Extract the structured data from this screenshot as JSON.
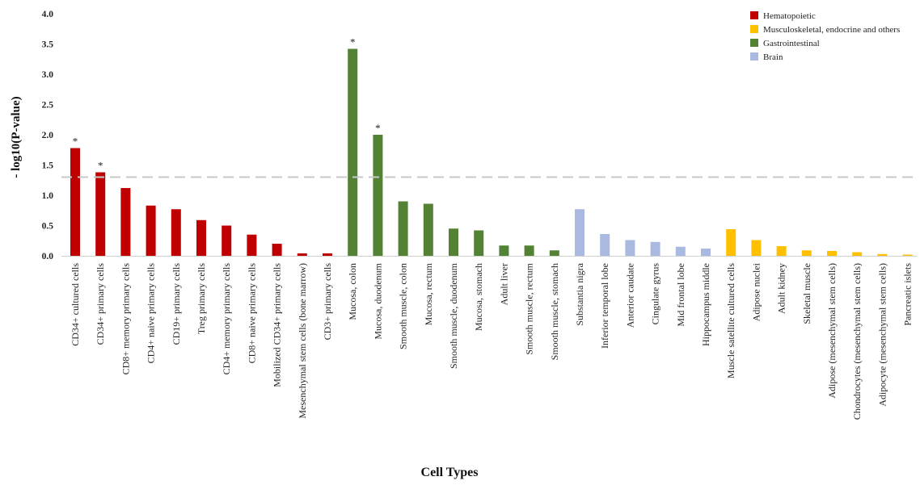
{
  "chart_data": {
    "type": "bar",
    "xlabel": "Cell Types",
    "ylabel": "- log10(P-value)",
    "ylim": [
      0,
      4.0
    ],
    "yticks": [
      "0.0",
      "0.5",
      "1.0",
      "1.5",
      "2.0",
      "2.5",
      "3.0",
      "3.5",
      "4.0"
    ],
    "threshold": 1.3,
    "legend_position": "top-right",
    "groups": [
      {
        "name": "Hematopoietic",
        "color": "#c00000"
      },
      {
        "name": "Musculoskeletal, endocrine and others",
        "color": "#ffc000"
      },
      {
        "name": "Gastrointestinal",
        "color": "#548235"
      },
      {
        "name": "Brain",
        "color": "#a9b9e0"
      }
    ],
    "categories": [
      "CD34+ cultured cells",
      "CD34+ primary cells",
      "CD8+ memory primary cells",
      "CD4+ naive primary cells",
      "CD19+ primary cells",
      "Treg primary cells",
      "CD4+ memory primary cells",
      "CD8+ naive primary cells",
      "Mobilized CD34+ primary cells",
      "Mesenchymal stem cells (bone marrow)",
      "CD3+ primary cells",
      "Mucosa, colon",
      "Mucosa, duodenum",
      "Smooth muscle, colon",
      "Mucosa, rectum",
      "Smooth muscle, duodenum",
      "Mucosa, stomach",
      "Adult liver",
      "Smooth muscle, rectum",
      "Smooth muscle, stomach",
      "Substantia nigra",
      "Inferior temporal lobe",
      "Anterior caudate",
      "Cingulate gyrus",
      "Mid frontal lobe",
      "Hippocampus middle",
      "Muscle satellite cultured cells",
      "Adipose nuclei",
      "Adult kidney",
      "Skeletal muscle",
      "Adipose (mesenchymal stem cells)",
      "Chondrocytes (mesenchymal stem cells)",
      "Adipocyte (mesenchymal stem cells)",
      "Pancreatic islets"
    ],
    "values": [
      1.78,
      1.38,
      1.12,
      0.83,
      0.77,
      0.59,
      0.5,
      0.35,
      0.2,
      0.04,
      0.04,
      3.42,
      2.0,
      0.9,
      0.86,
      0.45,
      0.42,
      0.17,
      0.17,
      0.09,
      0.77,
      0.36,
      0.26,
      0.23,
      0.15,
      0.12,
      0.44,
      0.26,
      0.16,
      0.09,
      0.08,
      0.06,
      0.03,
      0.02
    ],
    "group_index": [
      0,
      0,
      0,
      0,
      0,
      0,
      0,
      0,
      0,
      0,
      0,
      2,
      2,
      2,
      2,
      2,
      2,
      2,
      2,
      2,
      3,
      3,
      3,
      3,
      3,
      3,
      1,
      1,
      1,
      1,
      1,
      1,
      1,
      1
    ],
    "significant_marker": "*",
    "significant": [
      true,
      true,
      false,
      false,
      false,
      false,
      false,
      false,
      false,
      false,
      false,
      true,
      true,
      false,
      false,
      false,
      false,
      false,
      false,
      false,
      false,
      false,
      false,
      false,
      false,
      false,
      false,
      false,
      false,
      false,
      false,
      false,
      false,
      false
    ]
  }
}
